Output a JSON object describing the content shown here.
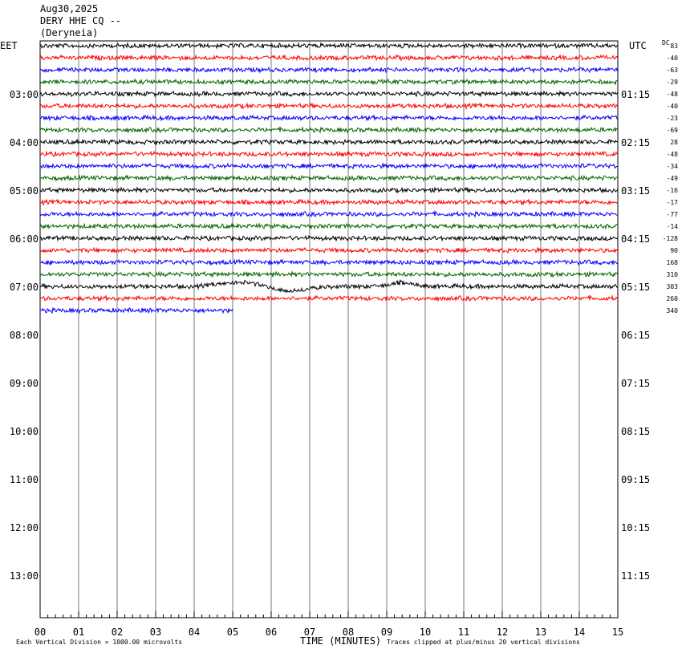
{
  "header": {
    "date": "Aug30,2025",
    "station": "DERY HHE CQ --",
    "location": "(Deryneia)"
  },
  "left_tz": "EET",
  "right_tz": "UTC",
  "dc_label": "DC",
  "footer": {
    "scale": "Each Vertical Division = 1000.00 microvolts",
    "xlabel": "TIME (MINUTES)",
    "clip": "Traces clipped at plus/minus 20 vertical divisions"
  },
  "trace_colors": [
    "#000000",
    "#ff0000",
    "#0000ff",
    "#006400"
  ],
  "chart_data": {
    "type": "line",
    "title": "DERY HHE CQ --",
    "xlabel": "TIME (MINUTES)",
    "ylabel": "",
    "xlim": [
      0,
      15
    ],
    "x_ticks": [
      "00",
      "01",
      "02",
      "03",
      "04",
      "05",
      "06",
      "07",
      "08",
      "09",
      "10",
      "11",
      "12",
      "13",
      "14",
      "15"
    ],
    "left_hour_labels": [
      "03:00",
      "04:00",
      "05:00",
      "06:00",
      "07:00",
      "08:00",
      "09:00",
      "10:00",
      "11:00",
      "12:00",
      "13:00"
    ],
    "right_hour_labels": [
      "01:15",
      "02:15",
      "03:15",
      "04:15",
      "05:15",
      "06:15",
      "07:15",
      "08:15",
      "09:15",
      "10:15",
      "11:15"
    ],
    "dc_offsets": [
      "83",
      "-40",
      "-63",
      "-29",
      "-48",
      "-40",
      "-23",
      "-69",
      "28",
      "-48",
      "-34",
      "-49",
      "-16",
      "-17",
      "-77",
      "-14",
      "-128",
      "90",
      "168",
      "310",
      "303",
      "260",
      "340"
    ],
    "trace_count": 23,
    "last_trace_end_minute": 5.0,
    "grid": true
  }
}
